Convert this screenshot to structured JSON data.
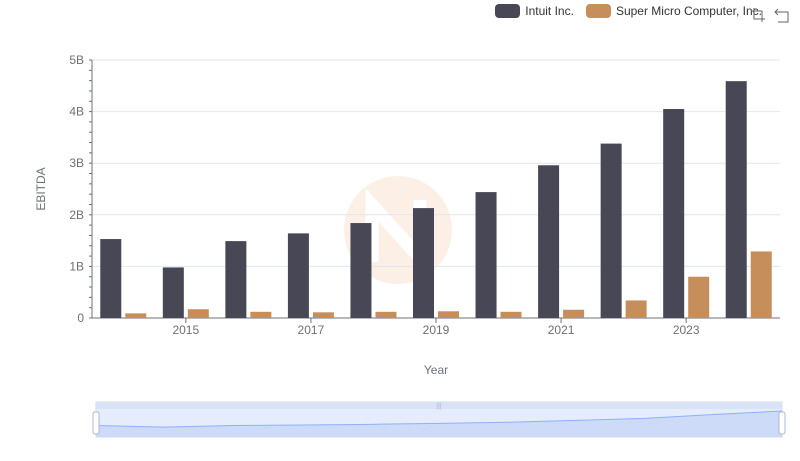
{
  "chart_data": {
    "type": "bar",
    "xlabel": "Year",
    "ylabel": "EBITDA",
    "x_tick_labels": [
      "2015",
      "2017",
      "2019",
      "2021",
      "2023"
    ],
    "y_tick_labels": [
      "0",
      "1B",
      "2B",
      "3B",
      "4B",
      "5B"
    ],
    "ylim": [
      0,
      5000000000
    ],
    "categories": [
      2014,
      2015,
      2016,
      2017,
      2018,
      2019,
      2020,
      2021,
      2022,
      2023,
      2024
    ],
    "series": [
      {
        "name": "Intuit Inc.",
        "color": "#474755",
        "values": [
          1530000000,
          980000000,
          1490000000,
          1640000000,
          1840000000,
          2130000000,
          2440000000,
          2960000000,
          3380000000,
          4050000000,
          4590000000
        ]
      },
      {
        "name": "Super Micro Computer, Inc.",
        "color": "#c68e5b",
        "values": [
          90000000,
          170000000,
          120000000,
          110000000,
          120000000,
          130000000,
          120000000,
          160000000,
          340000000,
          800000000,
          1290000000
        ]
      }
    ],
    "legend_position": "top-right",
    "grid": true,
    "data_zoom": {
      "start": 0,
      "end": 100
    }
  },
  "legend": {
    "items": [
      {
        "label": "Intuit Inc.",
        "color": "#474755"
      },
      {
        "label": "Super Micro Computer, Inc.",
        "color": "#c68e5b"
      }
    ]
  },
  "toolbox": {
    "icons": [
      "zoom-icon",
      "restore-icon"
    ]
  }
}
